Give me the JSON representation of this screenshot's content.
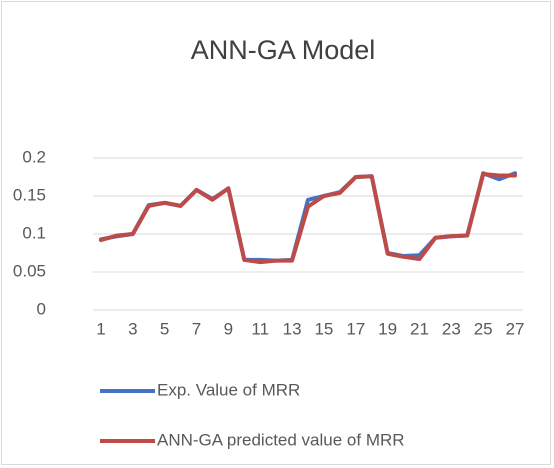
{
  "chart_data": {
    "type": "line",
    "title": "ANN-GA Model",
    "categories": [
      1,
      null,
      3,
      null,
      5,
      null,
      7,
      null,
      9,
      null,
      11,
      null,
      13,
      null,
      15,
      null,
      17,
      null,
      19,
      null,
      21,
      null,
      23,
      null,
      25,
      null,
      27
    ],
    "series": [
      {
        "name": "Exp. Value of MRR",
        "color": "#4472c4",
        "values": [
          0.093,
          0.097,
          0.1,
          0.138,
          0.141,
          0.137,
          0.158,
          0.146,
          0.16,
          0.066,
          0.066,
          0.065,
          0.066,
          0.145,
          0.15,
          0.155,
          0.175,
          0.176,
          0.075,
          0.071,
          0.072,
          0.095,
          0.097,
          0.098,
          0.18,
          0.172,
          0.18
        ]
      },
      {
        "name": "ANN-GA predicted value of MRR",
        "color": "#be4b48",
        "values": [
          0.092,
          0.098,
          0.1,
          0.137,
          0.141,
          0.137,
          0.158,
          0.145,
          0.16,
          0.066,
          0.063,
          0.065,
          0.065,
          0.136,
          0.15,
          0.154,
          0.175,
          0.176,
          0.074,
          0.07,
          0.067,
          0.095,
          0.097,
          0.098,
          0.179,
          0.177,
          0.177
        ]
      }
    ],
    "ylim": [
      0,
      0.2
    ],
    "yticks": [
      0,
      0.05,
      0.1,
      0.15,
      0.2
    ],
    "grid": true,
    "legend": "bottom"
  }
}
